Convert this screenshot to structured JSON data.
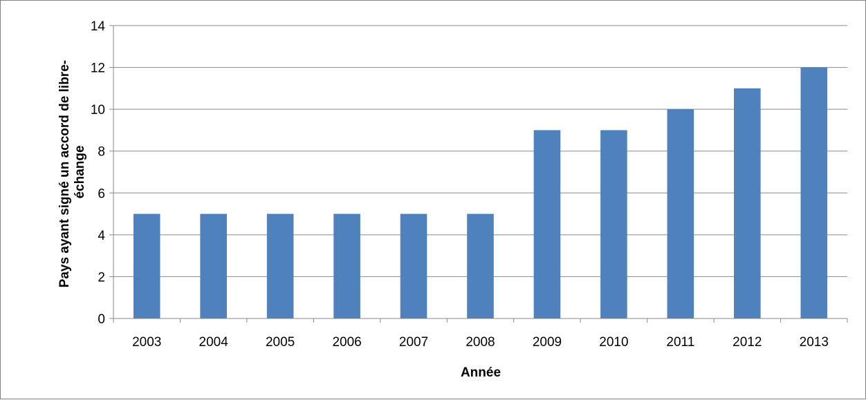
{
  "chart_data": {
    "type": "bar",
    "title": "",
    "xlabel": "Année",
    "ylabel_lines": [
      "Pays ayant signé un accord de libre-",
      "échange"
    ],
    "categories": [
      "2003",
      "2004",
      "2005",
      "2006",
      "2007",
      "2008",
      "2009",
      "2010",
      "2011",
      "2012",
      "2013"
    ],
    "values": [
      5,
      5,
      5,
      5,
      5,
      5,
      9,
      9,
      10,
      11,
      12
    ],
    "ylim": [
      0,
      14
    ],
    "yticks": [
      0,
      2,
      4,
      6,
      8,
      10,
      12,
      14
    ],
    "grid": true,
    "legend": "none",
    "bar_color": "#4F81BD",
    "grid_color": "#888888"
  }
}
